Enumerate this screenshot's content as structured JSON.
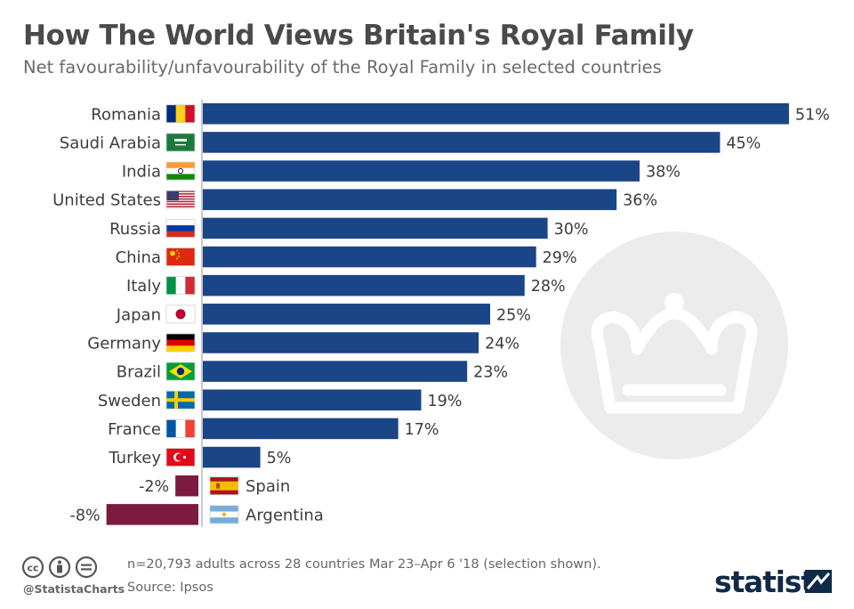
{
  "header": {
    "title": "How The World Views Britain's Royal Family",
    "subtitle": "Net favourability/unfavourability of the Royal Family in selected countries"
  },
  "chart_data": {
    "type": "bar",
    "orientation": "horizontal",
    "categories": [
      "Romania",
      "Saudi Arabia",
      "India",
      "United States",
      "Russia",
      "China",
      "Italy",
      "Japan",
      "Germany",
      "Brazil",
      "Sweden",
      "France",
      "Turkey",
      "Spain",
      "Argentina"
    ],
    "values": [
      51,
      45,
      38,
      36,
      30,
      29,
      28,
      25,
      24,
      23,
      19,
      17,
      5,
      -2,
      -8
    ],
    "value_labels": [
      "51%",
      "45%",
      "38%",
      "36%",
      "30%",
      "29%",
      "28%",
      "25%",
      "24%",
      "23%",
      "19%",
      "17%",
      "5%",
      "-2%",
      "-8%"
    ],
    "flag_icons": [
      "romania-flag-icon",
      "saudi-arabia-flag-icon",
      "india-flag-icon",
      "united-states-flag-icon",
      "russia-flag-icon",
      "china-flag-icon",
      "italy-flag-icon",
      "japan-flag-icon",
      "germany-flag-icon",
      "brazil-flag-icon",
      "sweden-flag-icon",
      "france-flag-icon",
      "turkey-flag-icon",
      "spain-flag-icon",
      "argentina-flag-icon"
    ],
    "unit": "%",
    "xlim": [
      -8,
      51
    ],
    "grid": false,
    "colors": {
      "positive": "#1a4587",
      "negative": "#7c1a3f",
      "axis": "#b8b8b8",
      "label": "#3d3d3d"
    },
    "background_icon": "crown-icon"
  },
  "footer": {
    "note": "n=20,793 adults across 28 countries Mar 23–Apr 6 '18 (selection shown).",
    "source": "Source: Ipsos",
    "handle": "@StatistaCharts",
    "logo": "statista",
    "license_icons": [
      "cc-icon",
      "attribution-icon",
      "no-derivatives-icon"
    ]
  }
}
